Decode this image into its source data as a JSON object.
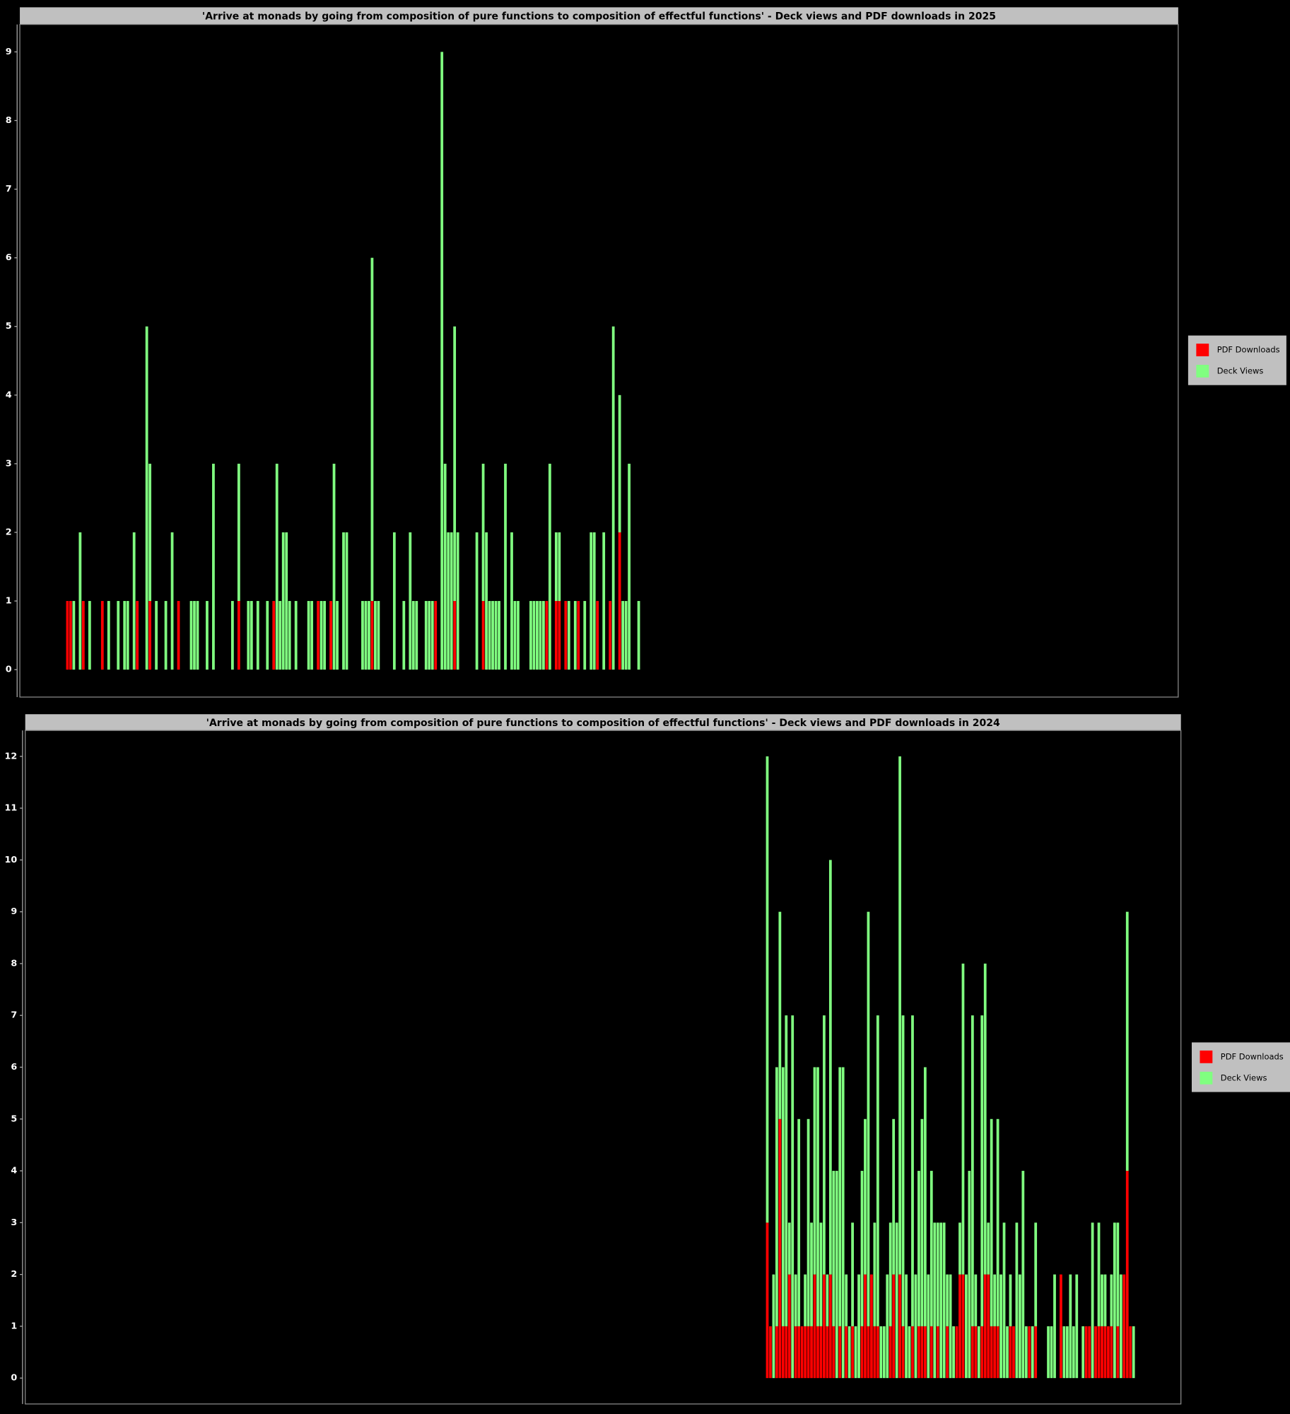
{
  "chart_data": [
    {
      "type": "bar",
      "stacked": true,
      "legend": "right",
      "title": "'Arrive at monads by going from composition of pure functions to composition of effectful functions' - Deck views and PDF downloads in 2025",
      "xlim": [
        0,
        365
      ],
      "ylim": [
        -0.4,
        9.4
      ],
      "yticks": [
        0,
        1,
        2,
        3,
        4,
        5,
        6,
        7,
        8,
        9
      ],
      "x": [
        15,
        16,
        17,
        19,
        20,
        22,
        26,
        28,
        31,
        33,
        34,
        36,
        37,
        40,
        41,
        43,
        46,
        48,
        50,
        54,
        55,
        56,
        59,
        61,
        67,
        69,
        72,
        73,
        75,
        78,
        80,
        81,
        82,
        83,
        84,
        85,
        87,
        91,
        92,
        94,
        95,
        96,
        98,
        99,
        100,
        102,
        103,
        108,
        109,
        110,
        111,
        112,
        113,
        118,
        121,
        123,
        124,
        125,
        128,
        129,
        130,
        131,
        133,
        134,
        135,
        136,
        137,
        138,
        144,
        146,
        147,
        148,
        149,
        150,
        151,
        153,
        155,
        156,
        157,
        161,
        162,
        163,
        164,
        165,
        166,
        167,
        169,
        170,
        172,
        173,
        175,
        176,
        178,
        180,
        181,
        182,
        184,
        186,
        187,
        189,
        190,
        191,
        192,
        195
      ],
      "series": [
        {
          "name": "PDF Downloads",
          "color": "#ff0000",
          "values": [
            1,
            1,
            0,
            0,
            1,
            0,
            1,
            0,
            0,
            0,
            0,
            0,
            1,
            0,
            1,
            0,
            0,
            0,
            1,
            0,
            0,
            0,
            0,
            0,
            0,
            1,
            0,
            0,
            0,
            0,
            1,
            0,
            0,
            0,
            0,
            0,
            0,
            0,
            0,
            1,
            0,
            0,
            1,
            0,
            0,
            0,
            0,
            0,
            0,
            0,
            1,
            0,
            0,
            0,
            0,
            0,
            0,
            0,
            0,
            0,
            0,
            1,
            0,
            0,
            0,
            0,
            1,
            0,
            0,
            1,
            0,
            0,
            0,
            0,
            0,
            0,
            0,
            0,
            0,
            0,
            0,
            0,
            0,
            0,
            1,
            0,
            1,
            1,
            1,
            0,
            0,
            1,
            0,
            0,
            0,
            1,
            0,
            1,
            0,
            2,
            0,
            0,
            0,
            0
          ]
        },
        {
          "name": "Deck Views",
          "color": "#80ff80",
          "values": [
            0,
            0,
            1,
            2,
            0,
            1,
            0,
            1,
            1,
            1,
            1,
            2,
            0,
            5,
            2,
            1,
            1,
            2,
            0,
            1,
            1,
            1,
            1,
            3,
            1,
            2,
            1,
            1,
            1,
            1,
            0,
            3,
            1,
            2,
            2,
            1,
            1,
            1,
            1,
            0,
            1,
            1,
            0,
            3,
            1,
            2,
            2,
            1,
            1,
            1,
            5,
            1,
            1,
            2,
            1,
            2,
            1,
            1,
            1,
            1,
            1,
            0,
            9,
            3,
            2,
            2,
            4,
            2,
            2,
            2,
            2,
            1,
            1,
            1,
            1,
            3,
            2,
            1,
            1,
            1,
            1,
            1,
            1,
            1,
            0,
            3,
            1,
            1,
            0,
            1,
            1,
            0,
            1,
            2,
            2,
            0,
            2,
            0,
            5,
            2,
            1,
            1,
            3,
            1
          ]
        }
      ]
    },
    {
      "type": "bar",
      "stacked": true,
      "legend": "right",
      "title": "'Arrive at monads by going from composition of pure functions to composition of effectful functions' - Deck views and PDF downloads in 2024",
      "xlim": [
        0,
        366
      ],
      "ylim": [
        -0.5,
        12.5
      ],
      "yticks": [
        0,
        1,
        2,
        3,
        4,
        5,
        6,
        7,
        8,
        9,
        10,
        11,
        12
      ],
      "x": [
        235,
        236,
        237,
        238,
        239,
        240,
        241,
        242,
        243,
        244,
        245,
        246,
        247,
        248,
        249,
        250,
        251,
        252,
        253,
        254,
        255,
        256,
        257,
        258,
        259,
        260,
        261,
        262,
        263,
        264,
        265,
        266,
        267,
        268,
        269,
        270,
        271,
        272,
        273,
        274,
        275,
        276,
        277,
        278,
        279,
        280,
        281,
        282,
        283,
        284,
        285,
        286,
        287,
        288,
        289,
        290,
        291,
        292,
        293,
        294,
        295,
        296,
        297,
        298,
        299,
        300,
        301,
        302,
        303,
        304,
        305,
        306,
        307,
        308,
        309,
        310,
        311,
        312,
        313,
        314,
        315,
        316,
        317,
        318,
        319,
        320,
        321,
        322,
        323,
        324,
        325,
        326,
        327,
        328,
        329,
        330,
        331,
        332,
        333,
        334,
        335,
        336,
        337,
        338,
        339,
        340,
        341,
        342,
        343,
        344,
        345,
        346,
        347,
        348,
        349,
        350,
        351
      ],
      "series": [
        {
          "name": "PDF Downloads",
          "color": "#ff0000",
          "values": [
            3,
            1,
            0,
            1,
            5,
            1,
            1,
            2,
            0,
            1,
            1,
            1,
            1,
            1,
            1,
            2,
            1,
            1,
            2,
            1,
            2,
            1,
            0,
            1,
            0,
            1,
            0,
            1,
            0,
            0,
            1,
            2,
            1,
            2,
            1,
            1,
            0,
            0,
            0,
            1,
            2,
            0,
            2,
            1,
            0,
            0,
            1,
            0,
            1,
            1,
            1,
            0,
            1,
            0,
            1,
            0,
            0,
            1,
            0,
            0,
            1,
            2,
            2,
            0,
            0,
            1,
            1,
            0,
            1,
            2,
            2,
            1,
            1,
            1,
            0,
            0,
            0,
            1,
            1,
            0,
            0,
            0,
            0,
            1,
            0,
            1,
            0,
            0,
            0,
            0,
            0,
            0,
            0,
            2,
            0,
            0,
            0,
            0,
            0,
            0,
            0,
            1,
            1,
            0,
            1,
            1,
            1,
            1,
            1,
            1,
            0,
            1,
            0,
            2,
            4,
            1,
            0
          ]
        },
        {
          "name": "Deck Views",
          "color": "#80ff80",
          "values": [
            9,
            0,
            2,
            5,
            4,
            5,
            6,
            1,
            7,
            1,
            4,
            0,
            1,
            4,
            2,
            4,
            5,
            2,
            5,
            1,
            8,
            3,
            4,
            5,
            6,
            1,
            1,
            2,
            1,
            2,
            3,
            3,
            8,
            0,
            2,
            6,
            1,
            1,
            2,
            2,
            3,
            3,
            10,
            6,
            2,
            1,
            6,
            2,
            3,
            4,
            5,
            2,
            3,
            3,
            2,
            3,
            3,
            1,
            2,
            1,
            0,
            1,
            6,
            2,
            4,
            6,
            1,
            1,
            6,
            6,
            1,
            4,
            1,
            4,
            2,
            3,
            1,
            1,
            0,
            3,
            2,
            4,
            1,
            0,
            1,
            2,
            0,
            0,
            0,
            1,
            1,
            2,
            0,
            0,
            1,
            1,
            2,
            1,
            2,
            0,
            1,
            0,
            0,
            3,
            0,
            2,
            1,
            1,
            0,
            1,
            3,
            2,
            2,
            0,
            5,
            0,
            1
          ]
        }
      ]
    }
  ]
}
